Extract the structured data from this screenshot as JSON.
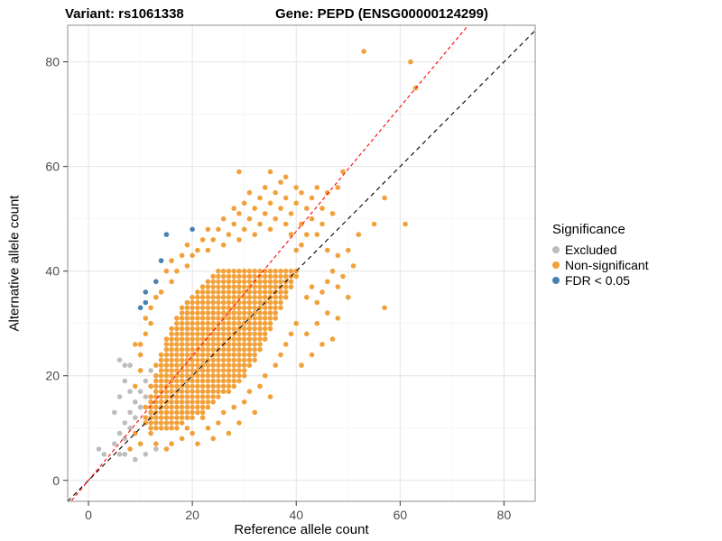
{
  "chart_data": {
    "type": "scatter",
    "variant_label": "Variant: rs1061338",
    "gene_label": "Gene: PEPD (ENSG00000124299)",
    "xlabel": "Reference allele count",
    "ylabel": "Alternative allele count",
    "xlim": [
      -4,
      86
    ],
    "ylim": [
      -4,
      87
    ],
    "x_ticks": [
      0,
      20,
      40,
      60,
      80
    ],
    "y_ticks": [
      0,
      20,
      40,
      60,
      80
    ],
    "minor_ticks": [
      10,
      30,
      50,
      70
    ],
    "grid": "major-and-minor",
    "point_radius": 2.8,
    "legend": {
      "title": "Significance",
      "position": "right",
      "items": [
        {
          "label": "Excluded",
          "color": "#BDBDBD"
        },
        {
          "label": "Non-significant",
          "color": "#F2A13A"
        },
        {
          "label": "FDR < 0.05",
          "color": "#4682B4"
        }
      ]
    },
    "lines": [
      {
        "name": "identity",
        "slope": 1,
        "intercept": 0,
        "color": "#000000",
        "dash": "5,4"
      },
      {
        "name": "expected-ratio",
        "slope": 1.19,
        "intercept": 0,
        "color": "#FF0000",
        "dash": "4,3"
      }
    ],
    "series": [
      {
        "key": "excluded",
        "name": "Excluded",
        "color": "#BDBDBD",
        "points": [
          [
            2,
            6
          ],
          [
            3,
            5
          ],
          [
            5,
            7
          ],
          [
            5,
            13
          ],
          [
            6,
            5
          ],
          [
            6,
            9
          ],
          [
            6,
            16
          ],
          [
            6,
            23
          ],
          [
            7,
            5
          ],
          [
            7,
            8
          ],
          [
            7,
            11
          ],
          [
            7,
            19
          ],
          [
            7,
            22
          ],
          [
            8,
            10
          ],
          [
            8,
            13
          ],
          [
            8,
            17
          ],
          [
            8,
            22
          ],
          [
            9,
            4
          ],
          [
            9,
            12
          ],
          [
            9,
            15
          ],
          [
            10,
            14
          ],
          [
            10,
            17
          ],
          [
            11,
            5
          ],
          [
            11,
            16
          ],
          [
            11,
            19
          ],
          [
            12,
            18
          ],
          [
            12,
            21
          ],
          [
            13,
            6
          ],
          [
            13,
            20
          ],
          [
            14,
            10
          ],
          [
            15,
            12
          ]
        ]
      },
      {
        "key": "non-significant",
        "name": "Non-significant",
        "color": "#F2A13A",
        "dense_runs": [
          [
            10,
            12,
            17
          ],
          [
            11,
            11,
            18
          ],
          [
            12,
            11,
            20
          ],
          [
            13,
            12,
            22
          ],
          [
            14,
            11,
            23
          ],
          [
            15,
            12,
            24
          ],
          [
            16,
            12,
            25
          ],
          [
            17,
            13,
            27
          ],
          [
            18,
            12,
            28
          ],
          [
            19,
            13,
            29
          ],
          [
            20,
            13,
            30
          ],
          [
            21,
            14,
            30
          ],
          [
            22,
            13,
            31
          ],
          [
            23,
            14,
            32
          ],
          [
            24,
            14,
            32
          ],
          [
            25,
            15,
            33
          ],
          [
            26,
            15,
            33
          ],
          [
            27,
            15,
            34
          ],
          [
            28,
            16,
            34
          ],
          [
            29,
            16,
            35
          ],
          [
            30,
            17,
            35
          ],
          [
            31,
            17,
            36
          ],
          [
            32,
            18,
            36
          ],
          [
            33,
            18,
            37
          ],
          [
            34,
            19,
            37
          ],
          [
            35,
            20,
            38
          ],
          [
            36,
            21,
            38
          ],
          [
            37,
            22,
            39
          ],
          [
            38,
            23,
            39
          ],
          [
            39,
            24,
            40
          ],
          [
            40,
            25,
            40
          ]
        ],
        "points": [
          [
            13,
            35
          ],
          [
            14,
            36
          ],
          [
            15,
            40
          ],
          [
            16,
            38
          ],
          [
            16,
            42
          ],
          [
            17,
            40
          ],
          [
            18,
            43
          ],
          [
            19,
            41
          ],
          [
            19,
            45
          ],
          [
            20,
            43
          ],
          [
            21,
            44
          ],
          [
            22,
            46
          ],
          [
            23,
            44
          ],
          [
            23,
            48
          ],
          [
            24,
            46
          ],
          [
            25,
            48
          ],
          [
            26,
            45
          ],
          [
            26,
            50
          ],
          [
            27,
            47
          ],
          [
            28,
            49
          ],
          [
            28,
            52
          ],
          [
            29,
            46
          ],
          [
            29,
            51
          ],
          [
            29,
            59
          ],
          [
            30,
            48
          ],
          [
            30,
            53
          ],
          [
            31,
            50
          ],
          [
            31,
            55
          ],
          [
            32,
            47
          ],
          [
            32,
            52
          ],
          [
            33,
            49
          ],
          [
            33,
            54
          ],
          [
            34,
            51
          ],
          [
            34,
            56
          ],
          [
            35,
            48
          ],
          [
            35,
            53
          ],
          [
            35,
            59
          ],
          [
            36,
            50
          ],
          [
            36,
            55
          ],
          [
            37,
            52
          ],
          [
            37,
            57
          ],
          [
            38,
            49
          ],
          [
            38,
            54
          ],
          [
            38,
            58
          ],
          [
            39,
            47
          ],
          [
            39,
            51
          ],
          [
            40,
            44
          ],
          [
            40,
            53
          ],
          [
            40,
            56
          ],
          [
            41,
            45
          ],
          [
            41,
            49
          ],
          [
            41,
            55
          ],
          [
            42,
            47
          ],
          [
            42,
            52
          ],
          [
            43,
            50
          ],
          [
            43,
            54
          ],
          [
            44,
            47
          ],
          [
            44,
            56
          ],
          [
            45,
            49
          ],
          [
            45,
            52
          ],
          [
            46,
            44
          ],
          [
            46,
            55
          ],
          [
            47,
            51
          ],
          [
            48,
            43
          ],
          [
            48,
            56
          ],
          [
            49,
            59
          ],
          [
            50,
            44
          ],
          [
            51,
            41
          ],
          [
            52,
            47
          ],
          [
            53,
            82
          ],
          [
            55,
            49
          ],
          [
            57,
            33
          ],
          [
            57,
            54
          ],
          [
            61,
            49
          ],
          [
            62,
            80
          ],
          [
            63,
            75
          ],
          [
            41,
            22
          ],
          [
            42,
            28
          ],
          [
            42,
            35
          ],
          [
            43,
            24
          ],
          [
            43,
            37
          ],
          [
            44,
            30
          ],
          [
            44,
            34
          ],
          [
            45,
            26
          ],
          [
            45,
            36
          ],
          [
            46,
            32
          ],
          [
            46,
            38
          ],
          [
            47,
            27
          ],
          [
            47,
            40
          ],
          [
            48,
            31
          ],
          [
            48,
            37
          ],
          [
            49,
            39
          ],
          [
            50,
            35
          ],
          [
            8,
            6
          ],
          [
            9,
            9
          ],
          [
            10,
            7
          ],
          [
            12,
            9
          ],
          [
            13,
            7
          ],
          [
            15,
            6
          ],
          [
            16,
            7
          ],
          [
            18,
            8
          ],
          [
            19,
            10
          ],
          [
            20,
            9
          ],
          [
            21,
            7
          ],
          [
            22,
            12
          ],
          [
            23,
            10
          ],
          [
            24,
            8
          ],
          [
            25,
            11
          ],
          [
            26,
            13
          ],
          [
            27,
            9
          ],
          [
            28,
            14
          ],
          [
            29,
            11
          ],
          [
            30,
            15
          ],
          [
            31,
            17
          ],
          [
            32,
            13
          ],
          [
            33,
            18
          ],
          [
            34,
            20
          ],
          [
            35,
            16
          ],
          [
            36,
            22
          ],
          [
            37,
            24
          ],
          [
            38,
            26
          ],
          [
            39,
            28
          ],
          [
            40,
            30
          ],
          [
            9,
            18
          ],
          [
            9,
            26
          ],
          [
            10,
            21
          ],
          [
            10,
            24
          ],
          [
            10,
            26
          ],
          [
            11,
            28
          ],
          [
            11,
            31
          ],
          [
            12,
            30
          ],
          [
            12,
            33
          ]
        ]
      },
      {
        "key": "fdr",
        "name": "FDR < 0.05",
        "color": "#4682B4",
        "points": [
          [
            10,
            33
          ],
          [
            11,
            34
          ],
          [
            11,
            36
          ],
          [
            13,
            38
          ],
          [
            14,
            42
          ],
          [
            15,
            47
          ],
          [
            20,
            48
          ]
        ]
      }
    ]
  }
}
